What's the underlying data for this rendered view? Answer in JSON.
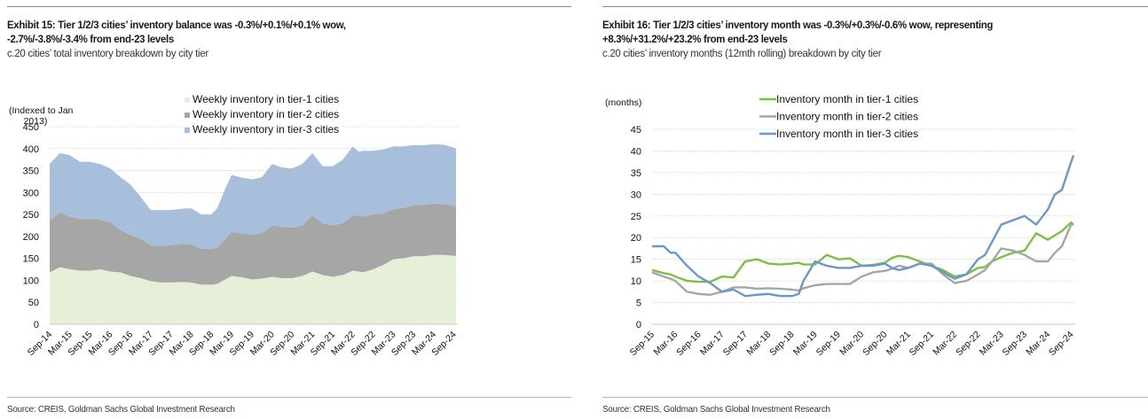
{
  "exhibits": [
    {
      "title_line1": "Exhibit 15: Tier 1/2/3 cities’ inventory balance was -0.3%/+0.1%/+0.1% wow,",
      "title_line2": "-2.7%/-3.8%/-3.4% from end-23 levels",
      "subtitle": "c.20 cities’ total inventory breakdown by city tier",
      "source": "Source: CREIS, Goldman Sachs Global Investment Research"
    },
    {
      "title_line1": "Exhibit 16: Tier 1/2/3 cities’ inventory month was -0.3%/+0.3%/-0.6% wow, representing",
      "title_line2": "+8.3%/+31.2%/+23.2% from end-23 levels",
      "subtitle": "c.20 cities’ inventory months (12mth rolling) breakdown by city tier",
      "source": "Source: CREIS, Goldman Sachs Global Investment Research"
    }
  ],
  "chart_data": [
    {
      "type": "area",
      "stacked": true,
      "title": "Tier 1/2/3 cities’ inventory balance",
      "ylabel_line1": "(Indexed to Jan",
      "ylabel_line2": "2013)",
      "xlabel": "",
      "ylim": [
        0,
        450
      ],
      "yticks": [
        0,
        50,
        100,
        150,
        200,
        250,
        300,
        350,
        400,
        450
      ],
      "grid": true,
      "legend_position": "top-center",
      "x_tick_labels": [
        "Sep-14",
        "Mar-15",
        "Sep-15",
        "Mar-16",
        "Sep-16",
        "Mar-17",
        "Sep-17",
        "Mar-18",
        "Sep-18",
        "Mar-19",
        "Sep-19",
        "Mar-20",
        "Sep-20",
        "Mar-21",
        "Sep-21",
        "Mar-22",
        "Sep-22",
        "Mar-23",
        "Sep-23",
        "Mar-24",
        "Sep-24"
      ],
      "x_range": [
        0,
        20.1
      ],
      "x": [
        0,
        0.5,
        1,
        1.5,
        2,
        2.5,
        3,
        3.5,
        4,
        4.5,
        5,
        5.5,
        6,
        6.5,
        7,
        7.5,
        8,
        8.3,
        8.6,
        9,
        9.5,
        10,
        10.5,
        11,
        11.5,
        12,
        12.5,
        13,
        13.5,
        14,
        14.5,
        15,
        15.3,
        15.5,
        16,
        16.5,
        17,
        17.5,
        18,
        18.5,
        19,
        19.5,
        20,
        20.1
      ],
      "series": [
        {
          "name": "Weekly inventory in tier-1 cities",
          "color": "#e6f0d8",
          "values": [
            118,
            130,
            125,
            122,
            122,
            125,
            120,
            118,
            110,
            105,
            98,
            95,
            95,
            96,
            95,
            90,
            90,
            92,
            100,
            110,
            107,
            102,
            104,
            108,
            105,
            105,
            110,
            120,
            112,
            108,
            112,
            122,
            120,
            118,
            125,
            135,
            148,
            150,
            155,
            155,
            158,
            158,
            156,
            155
          ]
        },
        {
          "name": "Weekly inventory in tier-2 cities",
          "color": "#a6a6a6",
          "values": [
            117,
            125,
            120,
            118,
            118,
            113,
            112,
            97,
            93,
            90,
            82,
            83,
            85,
            87,
            87,
            82,
            82,
            83,
            90,
            100,
            100,
            103,
            103,
            117,
            117,
            115,
            115,
            128,
            118,
            117,
            118,
            126,
            128,
            127,
            125,
            118,
            114,
            115,
            117,
            117,
            117,
            116,
            114,
            113
          ]
        },
        {
          "name": "Weekly inventory in tier-3 cities",
          "color": "#a8bfdc",
          "values": [
            130,
            135,
            140,
            130,
            130,
            127,
            123,
            120,
            115,
            95,
            80,
            82,
            80,
            80,
            82,
            78,
            78,
            90,
            110,
            130,
            127,
            125,
            128,
            140,
            135,
            135,
            140,
            142,
            130,
            135,
            145,
            157,
            145,
            150,
            145,
            145,
            143,
            140,
            136,
            136,
            135,
            135,
            132,
            132
          ]
        }
      ]
    },
    {
      "type": "line",
      "title": "Tier 1/2/3 cities’ inventory months",
      "ylabel": "(months)",
      "xlabel": "",
      "ylim": [
        0,
        45
      ],
      "yticks": [
        0,
        5,
        10,
        15,
        20,
        25,
        30,
        35,
        40,
        45
      ],
      "grid": true,
      "legend_position": "top-center",
      "x_tick_labels": [
        "Sep-15",
        "Mar-16",
        "Sep-16",
        "Mar-17",
        "Sep-17",
        "Mar-18",
        "Sep-18",
        "Mar-19",
        "Sep-19",
        "Mar-20",
        "Sep-20",
        "Mar-21",
        "Sep-21",
        "Mar-22",
        "Sep-22",
        "Mar-23",
        "Sep-23",
        "Mar-24",
        "Sep-24"
      ],
      "x_range": [
        0,
        18.1
      ],
      "x": [
        0,
        0.5,
        0.8,
        1,
        1.5,
        2,
        2.5,
        3,
        3.5,
        4,
        4.5,
        5,
        5.5,
        6,
        6.3,
        6.5,
        7,
        7.5,
        8,
        8.5,
        9,
        9.5,
        10,
        10.3,
        10.6,
        11,
        11.5,
        12,
        12.5,
        13,
        13.5,
        14,
        14.3,
        14.6,
        15,
        15.5,
        16,
        16.5,
        17,
        17.3,
        17.6,
        18,
        18.1
      ],
      "series": [
        {
          "name": "Inventory month in tier-1 cities",
          "color": "#7ac143",
          "values": [
            12.5,
            11.8,
            11.5,
            11,
            10,
            9.8,
            9.8,
            11,
            10.8,
            14.5,
            15,
            14,
            13.8,
            14,
            14.2,
            13.8,
            13.8,
            16,
            15,
            15.2,
            13.5,
            13.7,
            14.2,
            15.3,
            15.8,
            15.5,
            14.5,
            13.5,
            12.5,
            11,
            11.5,
            13,
            13.2,
            14.5,
            15.5,
            16.5,
            17,
            21,
            19.5,
            20.5,
            21.5,
            23.5,
            23
          ]
        },
        {
          "name": "Inventory month in tier-2 cities",
          "color": "#a6a6a6",
          "values": [
            12,
            11,
            10.5,
            10,
            7.5,
            7,
            6.8,
            7.5,
            8.5,
            8.5,
            8.2,
            8.3,
            8.2,
            8,
            7.8,
            8.3,
            9,
            9.3,
            9.3,
            9.3,
            11,
            12,
            12.3,
            12.8,
            13.5,
            13,
            14,
            14,
            11.5,
            9.5,
            10,
            11.5,
            12.5,
            14.5,
            17.5,
            17,
            16,
            14.5,
            14.5,
            16.5,
            18,
            23,
            23
          ]
        },
        {
          "name": "Inventory month in tier-3 cities",
          "color": "#6a97cc",
          "values": [
            18,
            18,
            16.5,
            16.5,
            13.5,
            11,
            9.5,
            7.5,
            8,
            6.5,
            6.8,
            7,
            6.5,
            6.5,
            7,
            10,
            14.5,
            13.5,
            13,
            13,
            13.5,
            13.5,
            14,
            13,
            12.5,
            13,
            14,
            13.5,
            12,
            10.5,
            11.5,
            15,
            16,
            19,
            23,
            24,
            25,
            23,
            26.5,
            30,
            31,
            37.5,
            39
          ]
        }
      ]
    }
  ]
}
